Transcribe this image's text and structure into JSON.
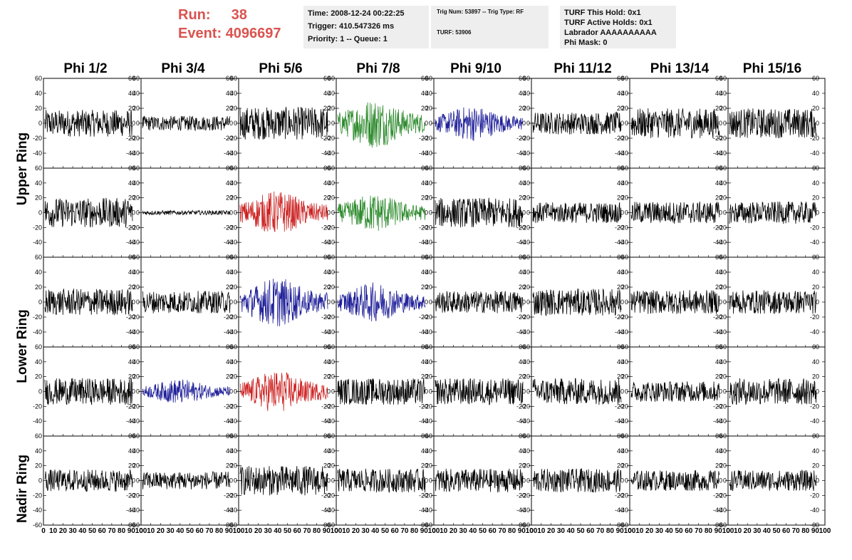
{
  "header": {
    "run_label": "Run:",
    "run_value": "38",
    "event_label": "Event:",
    "event_value": "4096697",
    "time": "Time: 2008-12-24 00:22:25",
    "trigger": "Trigger: 410.547326 ms",
    "priority": "Priority: 1 -- Queue: 1",
    "trig_num": "Trig Num: 53897 -- Trig Type: RF",
    "turf": "TURF: 53906",
    "turf_this_hold": "TURF This Hold: 0x1",
    "turf_active_holds": "TURF Active Holds: 0x1",
    "labrador": "Labrador AAAAAAAAAA",
    "phi_mask": "Phi Mask: 0"
  },
  "columns": [
    "Phi 1/2",
    "Phi 3/4",
    "Phi 5/6",
    "Phi 7/8",
    "Phi 9/10",
    "Phi 11/12",
    "Phi 13/14",
    "Phi 15/16"
  ],
  "row_groups": [
    "Upper Ring",
    "Lower Ring",
    "Nadir Ring"
  ],
  "colors": {
    "black": "#000000",
    "green": "#2e8b2e",
    "blue": "#1f1f99",
    "red": "#cc2222",
    "run_text": "#d9534f"
  },
  "chart_data": {
    "type": "line",
    "description_of_grid": "5 rows x 8 columns of waveform panels",
    "ylim": [
      -60,
      60
    ],
    "xlim": [
      0,
      100
    ],
    "y_ticks": [
      -60,
      -40,
      -20,
      0,
      20,
      40,
      60
    ],
    "x_tick_labels": [
      "0",
      "10",
      "20",
      "30",
      "40",
      "50",
      "60",
      "70",
      "80",
      "90",
      "100"
    ],
    "panel_colors": [
      [
        "black",
        "black",
        "black",
        "green",
        "blue",
        "black",
        "black",
        "black"
      ],
      [
        "black",
        "black",
        "red",
        "green",
        "black",
        "black",
        "black",
        "black"
      ],
      [
        "black",
        "black",
        "blue",
        "blue",
        "black",
        "black",
        "black",
        "black"
      ],
      [
        "black",
        "blue",
        "red",
        "black",
        "black",
        "black",
        "black",
        "black"
      ],
      [
        "black",
        "black",
        "black",
        "black",
        "black",
        "black",
        "black",
        "black"
      ]
    ],
    "panel_amplitude": [
      [
        18,
        10,
        22,
        28,
        20,
        15,
        20,
        20
      ],
      [
        20,
        3,
        25,
        22,
        20,
        14,
        15,
        15
      ],
      [
        18,
        15,
        28,
        22,
        15,
        18,
        16,
        16
      ],
      [
        18,
        14,
        24,
        18,
        18,
        18,
        14,
        18
      ],
      [
        15,
        12,
        20,
        16,
        16,
        16,
        14,
        14
      ]
    ]
  }
}
